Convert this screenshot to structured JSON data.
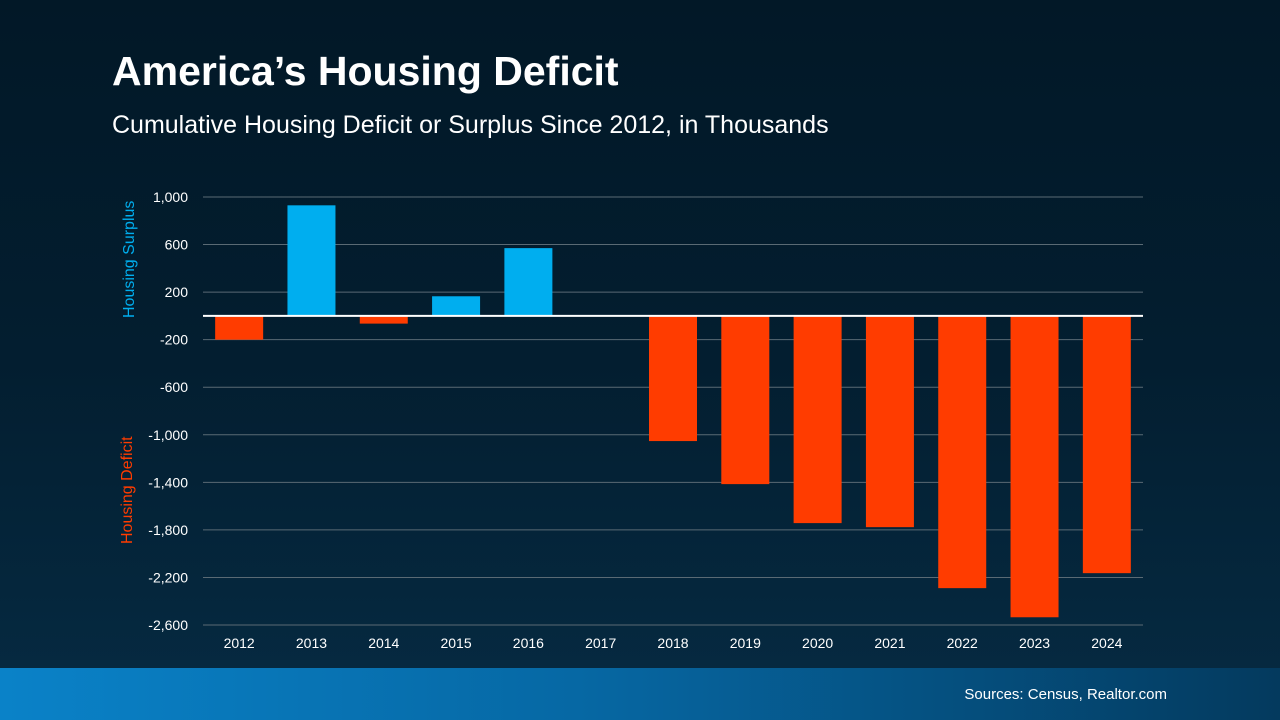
{
  "title": "America’s Housing Deficit",
  "subtitle": "Cumulative Housing Deficit or Surplus Since 2012, in Thousands",
  "footer": {
    "sources": "Sources: Census, Realtor.com"
  },
  "colors": {
    "surplus": "#00aeef",
    "deficit": "#ff3c00",
    "grid": "#5a6a74",
    "zero_line": "#ffffff"
  },
  "chart_data": {
    "type": "bar",
    "categories": [
      "2012",
      "2013",
      "2014",
      "2015",
      "2016",
      "2017",
      "2018",
      "2019",
      "2020",
      "2021",
      "2022",
      "2023",
      "2024"
    ],
    "values": [
      -200,
      930,
      -65,
      165,
      570,
      0,
      -1053,
      -1415,
      -1743,
      -1777,
      -2290,
      -2535,
      -2164
    ],
    "ylim": [
      -2600,
      1000
    ],
    "yticks": [
      1000,
      600,
      200,
      -200,
      -600,
      -1000,
      -1400,
      -1800,
      -2200,
      -2600
    ],
    "ytick_labels": [
      "1,000",
      "600",
      "200",
      "-200",
      "-600",
      "-1,000",
      "-1,400",
      "-1,800",
      "-2,200",
      "-2,600"
    ],
    "ylabel_top": "Housing Surplus",
    "ylabel_bottom": "Housing Deficit",
    "grid": true
  }
}
